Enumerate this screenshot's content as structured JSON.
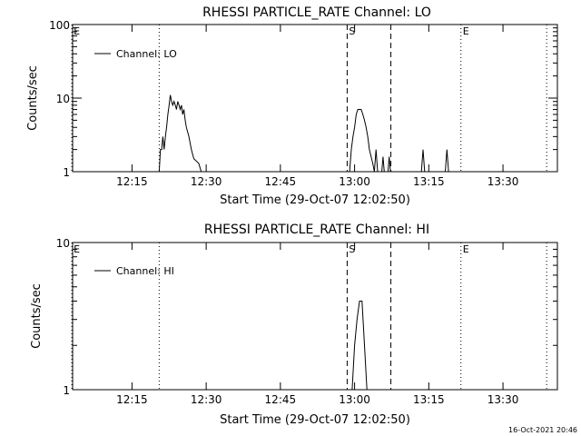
{
  "chart_data": [
    {
      "type": "line",
      "title": "RHESSI PARTICLE_RATE Channel: LO",
      "xlabel": "Start Time (29-Oct-07 12:02:50)",
      "ylabel": "Counts/sec",
      "yscale": "log",
      "xlim": [
        "12:03",
        "13:41"
      ],
      "ylim": [
        1,
        100
      ],
      "x_ticks": [
        "12:15",
        "12:30",
        "12:45",
        "13:00",
        "13:15",
        "13:30"
      ],
      "y_ticks": [
        "1",
        "10",
        "100"
      ],
      "legend": {
        "label": "Channel: LO",
        "placement": "top-left"
      },
      "markers": [
        {
          "time": "12:02:50",
          "label": "E",
          "style": "dotted"
        },
        {
          "time": "12:20:30",
          "label": "",
          "style": "dotted"
        },
        {
          "time": "12:58:30",
          "label": "S",
          "style": "dashed"
        },
        {
          "time": "13:07:20",
          "label": "",
          "style": "dashed"
        },
        {
          "time": "13:21:30",
          "label": "E",
          "style": "dotted"
        },
        {
          "time": "13:38:50",
          "label": "",
          "style": "dotted"
        }
      ],
      "series": [
        {
          "name": "Channel: LO",
          "points": [
            [
              "12:20:30",
              1.0
            ],
            [
              "12:20:45",
              2.0
            ],
            [
              "12:21:00",
              2.0
            ],
            [
              "12:21:15",
              3.0
            ],
            [
              "12:21:30",
              2.0
            ],
            [
              "12:21:45",
              3.0
            ],
            [
              "12:22:00",
              4.0
            ],
            [
              "12:22:15",
              6.0
            ],
            [
              "12:22:30",
              8.0
            ],
            [
              "12:22:45",
              11.0
            ],
            [
              "12:23:00",
              9.0
            ],
            [
              "12:23:15",
              8.0
            ],
            [
              "12:23:30",
              9.0
            ],
            [
              "12:23:45",
              8.0
            ],
            [
              "12:24:00",
              7.0
            ],
            [
              "12:24:15",
              9.0
            ],
            [
              "12:24:30",
              8.0
            ],
            [
              "12:24:45",
              7.0
            ],
            [
              "12:25:00",
              8.0
            ],
            [
              "12:25:15",
              6.0
            ],
            [
              "12:25:30",
              7.0
            ],
            [
              "12:25:45",
              5.0
            ],
            [
              "12:26:00",
              4.0
            ],
            [
              "12:26:30",
              3.0
            ],
            [
              "12:27:00",
              2.0
            ],
            [
              "12:27:30",
              1.5
            ],
            [
              "12:28:30",
              1.3
            ],
            [
              "12:29:00",
              1.0
            ],
            [
              "12:29:30",
              1.0
            ],
            [
              "12:59:00",
              1.0
            ],
            [
              "12:59:20",
              2.0
            ],
            [
              "12:59:40",
              3.0
            ],
            [
              "13:00:00",
              4.0
            ],
            [
              "13:00:20",
              6.0
            ],
            [
              "13:00:40",
              7.0
            ],
            [
              "13:01:00",
              7.0
            ],
            [
              "13:01:20",
              7.0
            ],
            [
              "13:01:40",
              6.0
            ],
            [
              "13:02:00",
              5.0
            ],
            [
              "13:02:20",
              4.0
            ],
            [
              "13:02:40",
              3.0
            ],
            [
              "13:03:00",
              2.0
            ],
            [
              "13:03:20",
              1.6
            ],
            [
              "13:03:40",
              1.3
            ],
            [
              "13:04:00",
              1.0
            ],
            [
              "13:04:20",
              2.0
            ],
            [
              "13:04:40",
              1.0
            ],
            [
              "13:05:30",
              1.0
            ],
            [
              "13:05:45",
              1.6
            ],
            [
              "13:06:00",
              1.0
            ],
            [
              "13:06:45",
              1.0
            ],
            [
              "13:07:00",
              1.6
            ],
            [
              "13:07:15",
              1.0
            ],
            [
              "13:13:30",
              1.0
            ],
            [
              "13:13:50",
              2.0
            ],
            [
              "13:14:10",
              1.0
            ],
            [
              "13:18:20",
              1.0
            ],
            [
              "13:18:40",
              2.0
            ],
            [
              "13:19:00",
              1.0
            ]
          ]
        }
      ]
    },
    {
      "type": "line",
      "title": "RHESSI PARTICLE_RATE Channel: HI",
      "xlabel": "Start Time (29-Oct-07 12:02:50)",
      "ylabel": "Counts/sec",
      "yscale": "log",
      "xlim": [
        "12:03",
        "13:41"
      ],
      "ylim": [
        1,
        10
      ],
      "x_ticks": [
        "12:15",
        "12:30",
        "12:45",
        "13:00",
        "13:15",
        "13:30"
      ],
      "y_ticks": [
        "1",
        "10"
      ],
      "legend": {
        "label": "Channel: HI",
        "placement": "top-left"
      },
      "markers": [
        {
          "time": "12:02:50",
          "label": "E",
          "style": "dotted"
        },
        {
          "time": "12:20:30",
          "label": "",
          "style": "dotted"
        },
        {
          "time": "12:58:30",
          "label": "S",
          "style": "dashed"
        },
        {
          "time": "13:07:20",
          "label": "",
          "style": "dashed"
        },
        {
          "time": "13:21:30",
          "label": "E",
          "style": "dotted"
        },
        {
          "time": "13:38:50",
          "label": "",
          "style": "dotted"
        }
      ],
      "series": [
        {
          "name": "Channel: HI",
          "points": [
            [
              "12:59:30",
              1.0
            ],
            [
              "13:00:00",
              2.0
            ],
            [
              "13:00:30",
              3.0
            ],
            [
              "13:01:00",
              4.0
            ],
            [
              "13:01:30",
              4.0
            ],
            [
              "13:02:00",
              2.0
            ],
            [
              "13:02:30",
              1.0
            ]
          ]
        }
      ]
    }
  ],
  "footer": {
    "timestamp": "16-Oct-2021 20:46"
  }
}
